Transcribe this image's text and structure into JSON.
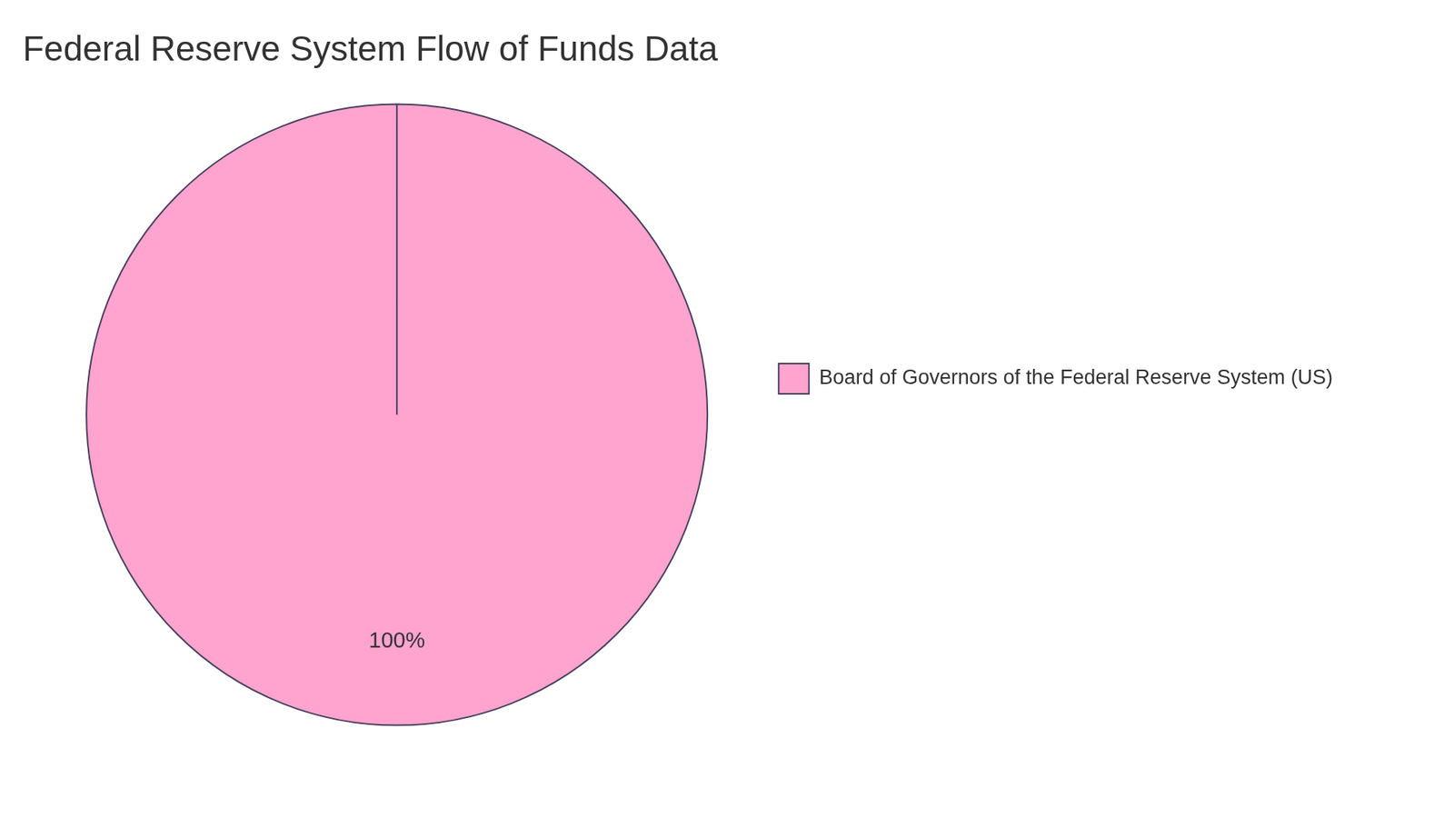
{
  "chart_data": {
    "type": "pie",
    "title": "Federal Reserve System Flow of Funds Data",
    "categories": [
      "Board of Governors of the Federal Reserve System (US)"
    ],
    "values": [
      100
    ],
    "value_labels": [
      "100%"
    ],
    "colors": [
      "#ffa3cf"
    ],
    "legend": "right",
    "data_labels": true
  }
}
